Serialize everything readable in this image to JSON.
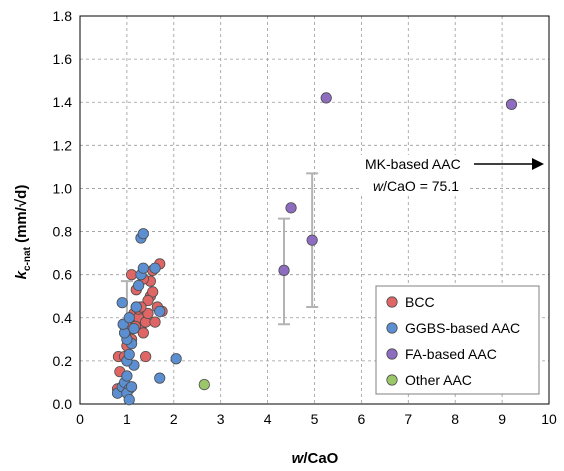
{
  "chart_data": {
    "type": "scatter",
    "xlabel": {
      "italic": "w",
      "rest": "/CaO"
    },
    "ylabel": {
      "italic": "k",
      "sub": "c-nat",
      "rest": " (mm/√d)"
    },
    "xlim": [
      0,
      10
    ],
    "ylim": [
      0,
      1.8
    ],
    "xticks": [
      "0",
      "1",
      "2",
      "3",
      "4",
      "5",
      "6",
      "7",
      "8",
      "9",
      "10"
    ],
    "yticks": [
      "0.0",
      "0.2",
      "0.4",
      "0.6",
      "0.8",
      "1.0",
      "1.2",
      "1.4",
      "1.6",
      "1.8"
    ],
    "grid": "dashed",
    "legend_position": "bottom-right",
    "series": [
      {
        "name": "BCC",
        "color": "#e06666",
        "points": [
          [
            0.8,
            0.07
          ],
          [
            0.85,
            0.15
          ],
          [
            0.82,
            0.22
          ],
          [
            0.95,
            0.22
          ],
          [
            1.0,
            0.27
          ],
          [
            1.02,
            0.32
          ],
          [
            1.05,
            0.35
          ],
          [
            1.1,
            0.38
          ],
          [
            1.15,
            0.42
          ],
          [
            1.2,
            0.45
          ],
          [
            1.25,
            0.4
          ],
          [
            1.3,
            0.35
          ],
          [
            1.35,
            0.33
          ],
          [
            1.4,
            0.38
          ],
          [
            1.45,
            0.42
          ],
          [
            1.5,
            0.5
          ],
          [
            1.55,
            0.52
          ],
          [
            1.6,
            0.38
          ],
          [
            1.65,
            0.45
          ],
          [
            1.75,
            0.43
          ],
          [
            1.7,
            0.65
          ],
          [
            1.55,
            0.62
          ],
          [
            1.5,
            0.57
          ],
          [
            1.35,
            0.58
          ],
          [
            1.1,
            0.6
          ],
          [
            1.2,
            0.53
          ],
          [
            1.4,
            0.22
          ],
          [
            1.1,
            0.3
          ],
          [
            1.25,
            0.44
          ],
          [
            1.45,
            0.48
          ],
          [
            1.18,
            0.36
          ],
          [
            1.3,
            0.45
          ]
        ]
      },
      {
        "name": "GGBS-based AAC",
        "color": "#5b8fd1",
        "points": [
          [
            0.8,
            0.05
          ],
          [
            0.9,
            0.08
          ],
          [
            0.95,
            0.1
          ],
          [
            1.0,
            0.13
          ],
          [
            1.05,
            0.07
          ],
          [
            1.0,
            0.05
          ],
          [
            1.1,
            0.08
          ],
          [
            1.15,
            0.18
          ],
          [
            1.0,
            0.2
          ],
          [
            1.05,
            0.23
          ],
          [
            1.1,
            0.28
          ],
          [
            1.0,
            0.3
          ],
          [
            0.95,
            0.33
          ],
          [
            0.92,
            0.37
          ],
          [
            1.05,
            0.4
          ],
          [
            0.9,
            0.47
          ],
          [
            1.2,
            0.45
          ],
          [
            1.15,
            0.35
          ],
          [
            1.25,
            0.55
          ],
          [
            1.3,
            0.6
          ],
          [
            1.35,
            0.63
          ],
          [
            1.3,
            0.77
          ],
          [
            1.35,
            0.79
          ],
          [
            1.6,
            0.63
          ],
          [
            1.7,
            0.43
          ],
          [
            1.7,
            0.12
          ],
          [
            2.05,
            0.21
          ],
          [
            1.05,
            0.02
          ]
        ]
      },
      {
        "name": "FA-based AAC",
        "color": "#8e6cbf",
        "points": [
          [
            4.35,
            0.62
          ],
          [
            4.5,
            0.91
          ],
          [
            4.95,
            0.76
          ],
          [
            5.25,
            1.42
          ],
          [
            9.2,
            1.39
          ]
        ]
      },
      {
        "name": "Other AAC",
        "color": "#9bc76a",
        "points": [
          [
            2.65,
            0.09
          ]
        ]
      }
    ],
    "error_bars": [
      {
        "x": 4.35,
        "low": 0.37,
        "high": 0.86
      },
      {
        "x": 4.95,
        "low": 0.45,
        "high": 1.07
      },
      {
        "x": 1.0,
        "low": 0.2,
        "high": 0.57
      }
    ],
    "annotation": {
      "line1": "MK-based AAC",
      "line2_italic": "w",
      "line2_rest": "/CaO = 75.1"
    }
  }
}
